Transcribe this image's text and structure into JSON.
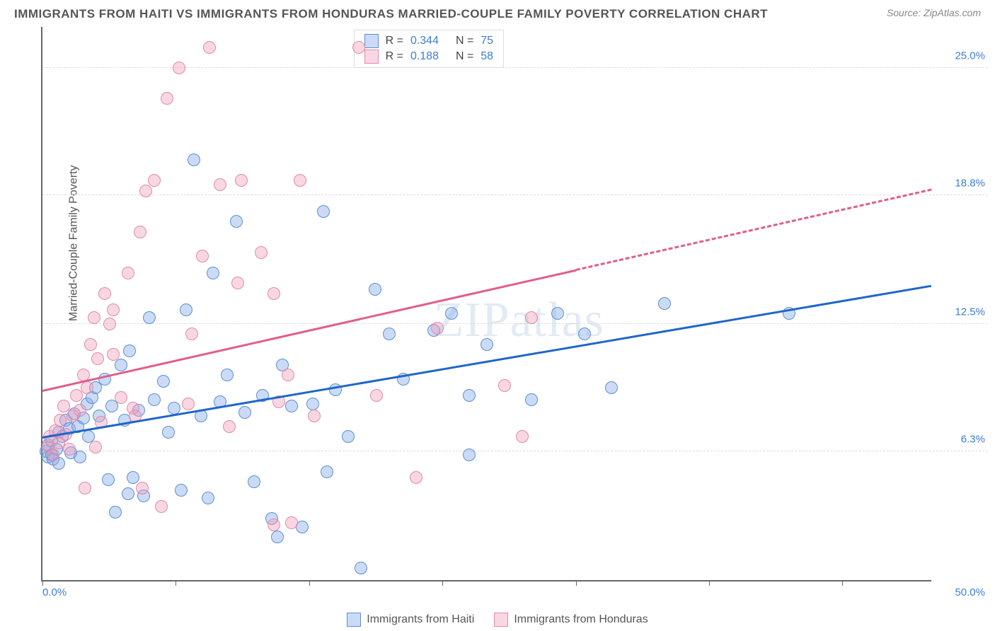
{
  "header": {
    "title": "IMMIGRANTS FROM HAITI VS IMMIGRANTS FROM HONDURAS MARRIED-COUPLE FAMILY POVERTY CORRELATION CHART",
    "source": "Source: ZipAtlas.com"
  },
  "chart": {
    "type": "scatter",
    "ylabel": "Married-Couple Family Poverty",
    "xlim": [
      0,
      50
    ],
    "ylim": [
      0,
      27
    ],
    "xrange_labels": {
      "min": "0.0%",
      "max": "50.0%"
    },
    "yticks": [
      {
        "v": 6.3,
        "label": "6.3%"
      },
      {
        "v": 12.5,
        "label": "12.5%"
      },
      {
        "v": 18.8,
        "label": "18.8%"
      },
      {
        "v": 25.0,
        "label": "25.0%"
      }
    ],
    "xtick_positions": [
      0,
      7.5,
      15,
      22.5,
      30,
      37.5,
      45
    ],
    "grid_color": "#dddddd",
    "background_color": "#ffffff",
    "marker_radius": 9,
    "marker_border_width": 1,
    "watermark": "ZIPatlas",
    "series": [
      {
        "id": "haiti",
        "label": "Immigrants from Haiti",
        "fill": "rgba(130,170,230,0.42)",
        "stroke": "#5a8fd6",
        "trend_color": "#1f66c9",
        "R": "0.344",
        "N": "75",
        "trend": {
          "x0": 0,
          "y0": 6.9,
          "x1": 50,
          "y1": 14.3,
          "dash": false,
          "dash_from_x": 50
        },
        "points": [
          [
            0.2,
            6.3
          ],
          [
            0.3,
            6.0
          ],
          [
            0.3,
            6.6
          ],
          [
            0.5,
            6.1
          ],
          [
            0.5,
            6.8
          ],
          [
            0.6,
            5.9
          ],
          [
            0.8,
            6.4
          ],
          [
            0.9,
            7.2
          ],
          [
            0.9,
            5.7
          ],
          [
            1.1,
            7.0
          ],
          [
            1.3,
            7.8
          ],
          [
            1.5,
            7.4
          ],
          [
            1.6,
            6.2
          ],
          [
            1.8,
            8.1
          ],
          [
            2.0,
            7.5
          ],
          [
            2.1,
            6.0
          ],
          [
            2.3,
            7.9
          ],
          [
            2.5,
            8.6
          ],
          [
            2.6,
            7.0
          ],
          [
            2.8,
            8.9
          ],
          [
            3.0,
            9.4
          ],
          [
            3.2,
            8.0
          ],
          [
            3.5,
            9.8
          ],
          [
            3.7,
            4.9
          ],
          [
            3.9,
            8.5
          ],
          [
            4.1,
            3.3
          ],
          [
            4.4,
            10.5
          ],
          [
            4.6,
            7.8
          ],
          [
            4.9,
            11.2
          ],
          [
            5.1,
            5.0
          ],
          [
            5.4,
            8.3
          ],
          [
            5.7,
            4.1
          ],
          [
            6.0,
            12.8
          ],
          [
            6.3,
            8.8
          ],
          [
            4.8,
            4.2
          ],
          [
            6.8,
            9.7
          ],
          [
            7.1,
            7.2
          ],
          [
            7.4,
            8.4
          ],
          [
            7.8,
            4.4
          ],
          [
            8.1,
            13.2
          ],
          [
            8.5,
            20.5
          ],
          [
            8.9,
            8.0
          ],
          [
            9.3,
            4.0
          ],
          [
            9.6,
            15.0
          ],
          [
            10.0,
            8.7
          ],
          [
            10.4,
            10.0
          ],
          [
            10.9,
            17.5
          ],
          [
            11.4,
            8.2
          ],
          [
            11.9,
            4.8
          ],
          [
            12.4,
            9.0
          ],
          [
            12.9,
            3.0
          ],
          [
            13.5,
            10.5
          ],
          [
            14.0,
            8.5
          ],
          [
            14.6,
            2.6
          ],
          [
            13.2,
            2.1
          ],
          [
            15.8,
            18.0
          ],
          [
            16.5,
            9.3
          ],
          [
            17.2,
            7.0
          ],
          [
            17.9,
            0.6
          ],
          [
            18.7,
            14.2
          ],
          [
            19.5,
            12.0
          ],
          [
            20.3,
            9.8
          ],
          [
            16.0,
            5.3
          ],
          [
            22.0,
            12.2
          ],
          [
            23.0,
            13.0
          ],
          [
            24.0,
            9.0
          ],
          [
            25.0,
            11.5
          ],
          [
            24.0,
            6.1
          ],
          [
            27.5,
            8.8
          ],
          [
            29.0,
            13.0
          ],
          [
            30.5,
            12.0
          ],
          [
            32.0,
            9.4
          ],
          [
            35.0,
            13.5
          ],
          [
            42.0,
            13.0
          ],
          [
            15.2,
            8.6
          ]
        ]
      },
      {
        "id": "honduras",
        "label": "Immigrants from Honduras",
        "fill": "rgba(240,160,185,0.42)",
        "stroke": "#e389a8",
        "trend_color": "#e15d8a",
        "R": "0.188",
        "N": "58",
        "trend": {
          "x0": 0,
          "y0": 9.2,
          "x1": 50,
          "y1": 19.0,
          "dash": true,
          "dash_from_x": 30
        },
        "points": [
          [
            0.3,
            6.5
          ],
          [
            0.4,
            7.0
          ],
          [
            0.6,
            6.1
          ],
          [
            0.7,
            7.3
          ],
          [
            0.9,
            6.7
          ],
          [
            1.0,
            7.8
          ],
          [
            1.2,
            8.5
          ],
          [
            1.3,
            7.1
          ],
          [
            1.5,
            6.4
          ],
          [
            1.7,
            8.0
          ],
          [
            1.9,
            9.0
          ],
          [
            2.1,
            8.3
          ],
          [
            2.3,
            10.0
          ],
          [
            2.5,
            9.4
          ],
          [
            2.7,
            11.5
          ],
          [
            2.9,
            12.8
          ],
          [
            3.1,
            10.8
          ],
          [
            3.3,
            7.7
          ],
          [
            3.5,
            14.0
          ],
          [
            3.8,
            12.5
          ],
          [
            4.0,
            13.2
          ],
          [
            4.4,
            8.9
          ],
          [
            4.8,
            15.0
          ],
          [
            5.1,
            8.4
          ],
          [
            5.5,
            17.0
          ],
          [
            5.6,
            4.5
          ],
          [
            6.3,
            19.5
          ],
          [
            6.7,
            3.6
          ],
          [
            5.8,
            19.0
          ],
          [
            7.7,
            25.0
          ],
          [
            8.2,
            8.6
          ],
          [
            7.0,
            23.5
          ],
          [
            9.4,
            26.0
          ],
          [
            10.0,
            19.3
          ],
          [
            11.0,
            14.5
          ],
          [
            11.2,
            19.5
          ],
          [
            2.4,
            4.5
          ],
          [
            12.3,
            16.0
          ],
          [
            13.0,
            2.7
          ],
          [
            13.8,
            10.0
          ],
          [
            14.5,
            19.5
          ],
          [
            15.3,
            8.0
          ],
          [
            13.3,
            8.7
          ],
          [
            14.0,
            2.8
          ],
          [
            17.8,
            26.0
          ],
          [
            18.8,
            9.0
          ],
          [
            13.0,
            14.0
          ],
          [
            21.0,
            5.0
          ],
          [
            22.2,
            12.3
          ],
          [
            8.4,
            12.0
          ],
          [
            5.2,
            8.0
          ],
          [
            26.0,
            9.5
          ],
          [
            27.5,
            12.8
          ],
          [
            27.0,
            7.0
          ],
          [
            3.0,
            6.5
          ],
          [
            4.0,
            11.0
          ],
          [
            9.0,
            15.8
          ],
          [
            10.5,
            7.5
          ]
        ]
      }
    ],
    "legend_top_rows": [
      {
        "series": 0,
        "r_label": "R =",
        "n_label": "N ="
      },
      {
        "series": 1,
        "r_label": "R =",
        "n_label": "N ="
      }
    ],
    "bottom_legend": [
      {
        "series": 0
      },
      {
        "series": 1
      }
    ]
  }
}
